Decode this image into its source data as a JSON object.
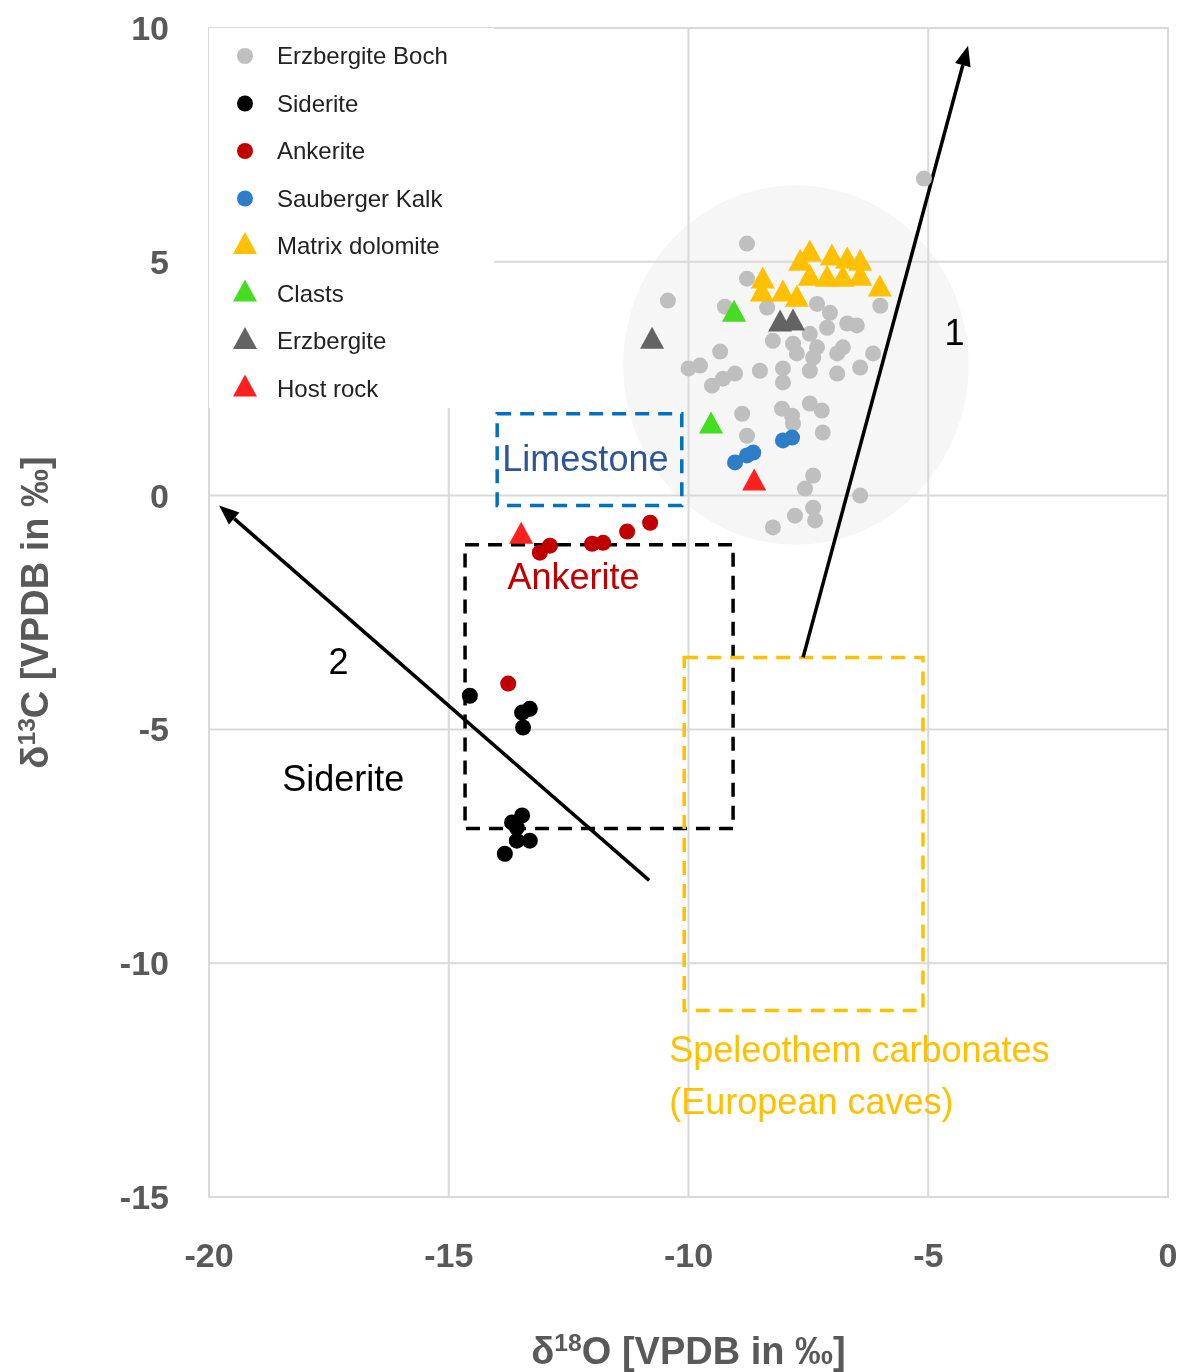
{
  "chart_data": {
    "type": "scatter",
    "xlabel": "δ$^{18}$O [VPDB in ‰]",
    "ylabel": "δ$^{13}$C [VPDB in ‰]",
    "xlim": [
      -20,
      0
    ],
    "ylim": [
      -15,
      10
    ],
    "xticks": [
      -20,
      -15,
      -10,
      -5,
      0
    ],
    "yticks": [
      -15,
      -10,
      -5,
      0,
      5,
      10
    ],
    "grid": true,
    "legend": "top left",
    "series": [
      {
        "name": "Erzbergite Boch",
        "marker": "circle",
        "color": "#bfbfbf",
        "x": [
          -5.09,
          -8.78,
          -8.78,
          -10.43,
          -9.24,
          -8.36,
          -6.0,
          -8.24,
          -9.34,
          -10.0,
          -9.76,
          -9.51,
          -9.28,
          -9.03,
          -8.51,
          -8.03,
          -8.03,
          -7.47,
          -6.9,
          -6.42,
          -6.15,
          -6.78,
          -6.49,
          -6.69,
          -7.05,
          -7.32,
          -7.11,
          -7.47,
          -7.82,
          -7.74,
          -7.32,
          -7.4,
          -6.9,
          -8.88,
          -8.78,
          -8.05,
          -7.84,
          -7.82,
          -7.47,
          -7.22,
          -7.2,
          -7.4,
          -7.57,
          -6.42,
          -7.4,
          -7.78,
          -7.36,
          -8.24
        ],
        "values": [
          6.78,
          5.39,
          4.64,
          4.17,
          4.04,
          4.02,
          4.06,
          3.31,
          3.08,
          2.72,
          2.78,
          2.35,
          2.5,
          2.61,
          2.67,
          2.72,
          2.42,
          2.67,
          2.61,
          2.74,
          3.04,
          3.17,
          3.64,
          3.68,
          3.91,
          4.1,
          3.59,
          3.46,
          3.25,
          3.04,
          3.17,
          2.95,
          3.04,
          1.75,
          1.28,
          1.86,
          1.71,
          1.54,
          1.97,
          1.82,
          1.35,
          0.43,
          0.15,
          0.0,
          -0.26,
          -0.43,
          -0.53,
          -0.68
        ]
      },
      {
        "name": "Siderite",
        "marker": "circle",
        "color": "#000000",
        "x": [
          -14.56,
          -13.31,
          -13.47,
          -13.45,
          -13.47,
          -13.68,
          -13.58,
          -13.58,
          -13.31,
          -13.83
        ],
        "values": [
          -4.28,
          -4.56,
          -4.64,
          -4.96,
          -6.84,
          -6.99,
          -7.1,
          -7.38,
          -7.38,
          -7.66
        ]
      },
      {
        "name": "Ankerite",
        "marker": "circle",
        "color": "#c00000",
        "x": [
          -13.76,
          -13.1,
          -12.89,
          -12.01,
          -11.78,
          -11.28,
          -10.8
        ],
        "values": [
          -4.02,
          -1.22,
          -1.07,
          -1.03,
          -1.01,
          -0.77,
          -0.58
        ]
      },
      {
        "name": "Sauberger Kalk",
        "marker": "circle",
        "color": "#2e7dc8",
        "x": [
          -9.03,
          -8.78,
          -8.65,
          -8.03,
          -7.84
        ],
        "values": [
          0.71,
          0.86,
          0.92,
          1.18,
          1.24
        ]
      },
      {
        "name": "Matrix dolomite",
        "marker": "triangle",
        "color": "#ffc000",
        "x": [
          -8.45,
          -8.47,
          -8.03,
          -7.74,
          -7.47,
          -7.67,
          -7.01,
          -6.69,
          -6.42,
          -7.47,
          -7.11,
          -6.78,
          -6.42,
          -6.01
        ],
        "values": [
          4.6,
          4.32,
          4.32,
          4.21,
          5.18,
          4.98,
          5.09,
          5.03,
          4.98,
          4.66,
          4.64,
          4.64,
          4.66,
          4.43
        ]
      },
      {
        "name": "Clasts",
        "marker": "triangle",
        "color": "#44dd22",
        "x": [
          -9.05,
          -9.53
        ],
        "values": [
          3.89,
          1.5
        ]
      },
      {
        "name": "Erzbergite",
        "marker": "triangle",
        "color": "#636363",
        "x": [
          -10.76,
          -8.09,
          -7.82
        ],
        "values": [
          3.31,
          3.68,
          3.7
        ]
      },
      {
        "name": "Host rock",
        "marker": "triangle",
        "color": "#ff2020",
        "x": [
          -8.63,
          -13.49
        ],
        "values": [
          0.28,
          -0.86
        ]
      }
    ],
    "annotations": [
      "Limestone",
      "Ankerite",
      "Siderite",
      "Speleothem carbonates\n(European caves)",
      "1",
      "2"
    ]
  }
}
